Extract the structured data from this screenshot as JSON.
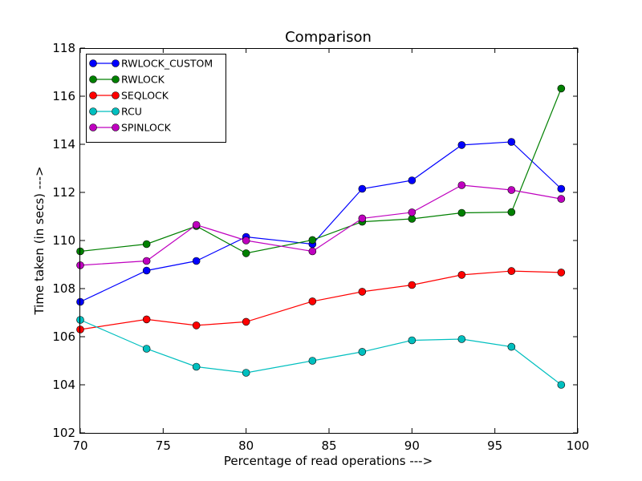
{
  "chart_data": {
    "type": "line",
    "title": "Comparison",
    "xlabel": "Percentage of read operations --->",
    "ylabel": "Time taken (in secs) --->",
    "xlim": [
      70,
      100
    ],
    "ylim": [
      102,
      118
    ],
    "xticks": [
      70,
      75,
      80,
      85,
      90,
      95,
      100
    ],
    "yticks": [
      102,
      104,
      106,
      108,
      110,
      112,
      114,
      116,
      118
    ],
    "grid": false,
    "legend_position": "top-left",
    "x": [
      70,
      74,
      77,
      80,
      84,
      87,
      90,
      93,
      96,
      99
    ],
    "series": [
      {
        "name": "RWLOCK_CUSTOM",
        "color": "#0000ff",
        "values": [
          107.45,
          108.75,
          109.15,
          110.15,
          109.85,
          112.15,
          112.5,
          113.97,
          114.1,
          112.15
        ]
      },
      {
        "name": "RWLOCK",
        "color": "#008000",
        "values": [
          109.55,
          109.85,
          110.6,
          109.47,
          110.02,
          110.78,
          110.9,
          111.15,
          111.18,
          116.32
        ]
      },
      {
        "name": "SEQLOCK",
        "color": "#ff0000",
        "values": [
          106.3,
          106.72,
          106.47,
          106.62,
          107.47,
          107.87,
          108.15,
          108.57,
          108.73,
          108.67
        ]
      },
      {
        "name": "RCU",
        "color": "#00bfbf",
        "values": [
          106.7,
          105.5,
          104.75,
          104.5,
          105.0,
          105.37,
          105.85,
          105.9,
          105.58,
          104.0
        ]
      },
      {
        "name": "SPINLOCK",
        "color": "#bf00bf",
        "values": [
          108.97,
          109.15,
          110.65,
          110.0,
          109.55,
          110.92,
          111.17,
          112.3,
          112.1,
          111.73
        ]
      }
    ]
  }
}
